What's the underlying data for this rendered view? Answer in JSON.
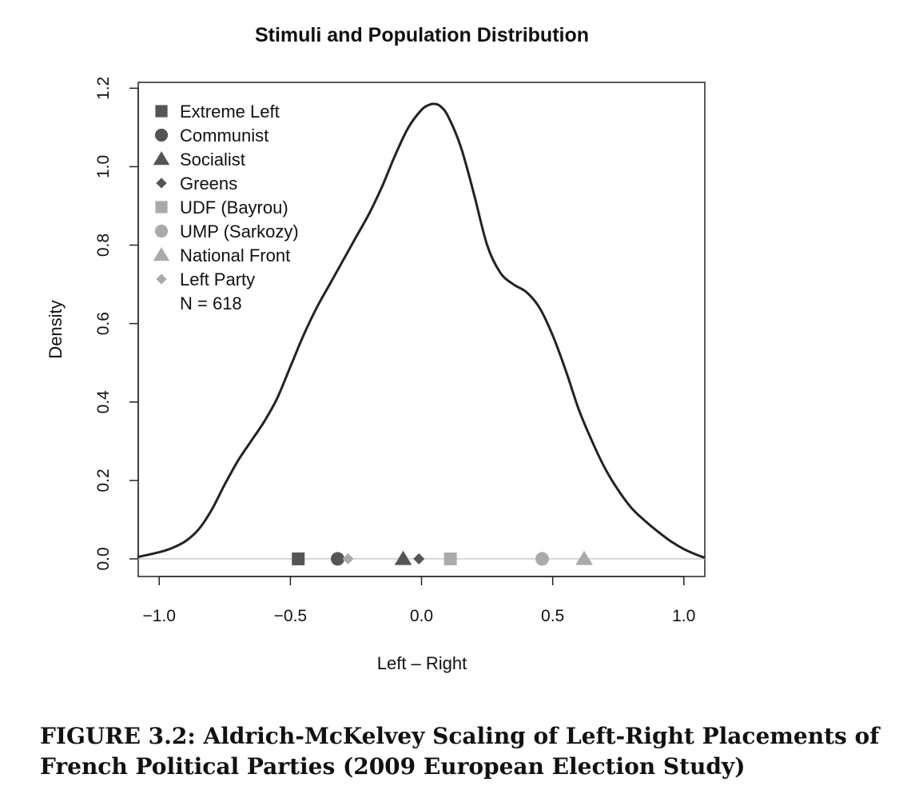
{
  "chart_data": {
    "type": "line",
    "title": "Stimuli and Population Distribution",
    "xlabel": "Left – Right",
    "ylabel": "Density",
    "xlim": [
      -1.08,
      1.08
    ],
    "ylim": [
      -0.045,
      1.215
    ],
    "x_ticks": [
      -1.0,
      -0.5,
      0.0,
      0.5,
      1.0
    ],
    "x_tick_labels": [
      "−1.0",
      "−0.5",
      "0.0",
      "0.5",
      "1.0"
    ],
    "y_ticks": [
      0.0,
      0.2,
      0.4,
      0.6,
      0.8,
      1.0,
      1.2
    ],
    "y_tick_labels": [
      "0.0",
      "0.2",
      "0.4",
      "0.6",
      "0.8",
      "1.0",
      "1.2"
    ],
    "grid": false,
    "legend_position": "top-left",
    "line_color": "#222222",
    "baseline_color": "#cccccc",
    "series": [
      {
        "type": "line",
        "x": [
          -1.08,
          -1.0,
          -0.95,
          -0.9,
          -0.85,
          -0.8,
          -0.75,
          -0.7,
          -0.65,
          -0.6,
          -0.55,
          -0.5,
          -0.45,
          -0.4,
          -0.35,
          -0.3,
          -0.25,
          -0.2,
          -0.15,
          -0.1,
          -0.05,
          0.0,
          0.03,
          0.05,
          0.07,
          0.1,
          0.15,
          0.2,
          0.25,
          0.3,
          0.35,
          0.4,
          0.45,
          0.5,
          0.55,
          0.6,
          0.65,
          0.7,
          0.75,
          0.8,
          0.85,
          0.9,
          0.95,
          1.0,
          1.05,
          1.08
        ],
        "y": [
          0.005,
          0.017,
          0.028,
          0.045,
          0.075,
          0.125,
          0.19,
          0.25,
          0.3,
          0.35,
          0.41,
          0.49,
          0.57,
          0.64,
          0.7,
          0.76,
          0.82,
          0.88,
          0.95,
          1.03,
          1.1,
          1.145,
          1.158,
          1.16,
          1.155,
          1.13,
          1.05,
          0.93,
          0.8,
          0.73,
          0.7,
          0.68,
          0.64,
          0.57,
          0.48,
          0.38,
          0.3,
          0.23,
          0.175,
          0.13,
          0.098,
          0.07,
          0.045,
          0.025,
          0.01,
          0.003
        ]
      }
    ],
    "stimuli": [
      {
        "name": "Extreme Left",
        "x": -0.47,
        "y": 0.0,
        "marker": "square",
        "color": "#555555"
      },
      {
        "name": "Communist",
        "x": -0.32,
        "y": 0.0,
        "marker": "circle",
        "color": "#555555"
      },
      {
        "name": "Socialist",
        "x": -0.07,
        "y": 0.0,
        "marker": "triangle",
        "color": "#555555"
      },
      {
        "name": "Greens",
        "x": -0.01,
        "y": 0.0,
        "marker": "diamond",
        "color": "#555555"
      },
      {
        "name": "UDF (Bayrou)",
        "x": 0.11,
        "y": 0.0,
        "marker": "square",
        "color": "#aaaaaa"
      },
      {
        "name": "UMP (Sarkozy)",
        "x": 0.46,
        "y": 0.0,
        "marker": "circle",
        "color": "#aaaaaa"
      },
      {
        "name": "National Front",
        "x": 0.62,
        "y": 0.0,
        "marker": "triangle",
        "color": "#aaaaaa"
      },
      {
        "name": "Left Party",
        "x": -0.28,
        "y": 0.0,
        "marker": "diamond",
        "color": "#aaaaaa"
      }
    ],
    "legend": [
      "Extreme Left",
      "Communist",
      "Socialist",
      "Greens",
      "UDF (Bayrou)",
      "UMP (Sarkozy)",
      "National Front",
      "Left Party"
    ],
    "legend_note": "N = 618"
  },
  "caption": "FIGURE 3.2: Aldrich-McKelvey Scaling of Left-Right Placements of French Political Parties (2009 European Election Study)"
}
